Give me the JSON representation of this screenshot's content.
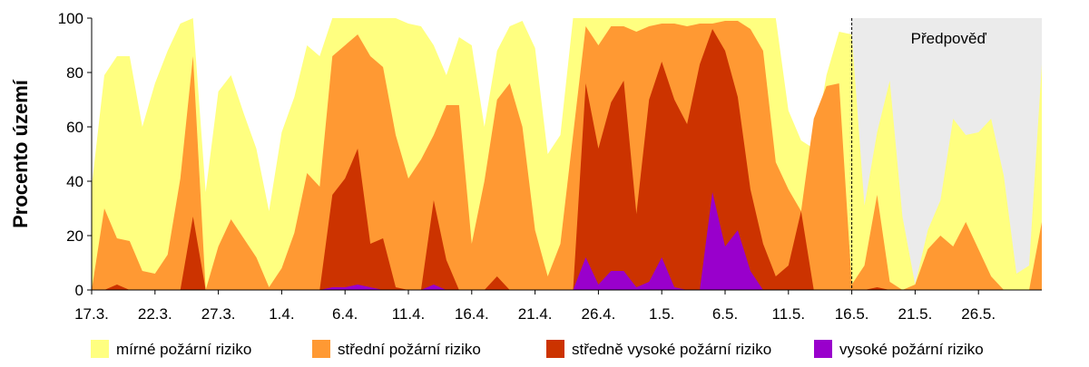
{
  "chart_data": {
    "type": "area",
    "stacked": false,
    "ylabel": "Procento území",
    "ylim": [
      0,
      100
    ],
    "yticks": [
      0,
      20,
      40,
      60,
      80,
      100
    ],
    "x_start": "17.3.",
    "x_end": "26.5.",
    "xtick_labels": [
      "17.3.",
      "22.3.",
      "27.3.",
      "1.4.",
      "6.4.",
      "11.4.",
      "16.4.",
      "21.4.",
      "26.4.",
      "1.5.",
      "6.5.",
      "11.5.",
      "16.5.",
      "21.5.",
      "26.5."
    ],
    "forecast": {
      "label": "Předpověď",
      "from": "16.5.",
      "to": "26.5.",
      "color": "#ebebeb"
    },
    "legend_position": "bottom",
    "series": [
      {
        "name": "mírné požární riziko",
        "color": "#ffff80",
        "values": [
          38,
          79,
          86,
          86,
          60,
          76,
          88,
          98,
          100,
          36,
          73,
          79,
          65,
          52,
          29,
          58,
          71,
          90,
          86,
          100,
          100,
          100,
          100,
          100,
          100,
          98,
          97,
          90,
          79,
          93,
          90,
          60,
          88,
          97,
          99,
          89,
          50,
          57,
          100,
          100,
          100,
          100,
          100,
          100,
          100,
          100,
          100,
          100,
          100,
          100,
          100,
          100,
          100,
          100,
          100,
          66,
          55,
          52,
          79,
          95,
          94,
          31,
          58,
          77,
          27,
          2,
          22,
          33,
          63,
          57,
          58,
          63,
          42,
          6,
          9,
          83
        ]
      },
      {
        "name": "střední požární riziko",
        "color": "#ff9933",
        "values": [
          0,
          30,
          19,
          18,
          7,
          6,
          13,
          41,
          86,
          0,
          16,
          26,
          19,
          12,
          1,
          8,
          21,
          43,
          38,
          86,
          90,
          94,
          86,
          82,
          57,
          41,
          48,
          57,
          68,
          68,
          17,
          40,
          70,
          76,
          60,
          22,
          5,
          17,
          57,
          97,
          90,
          97,
          97,
          95,
          97,
          98,
          98,
          97,
          98,
          98,
          99,
          99,
          96,
          88,
          47,
          37,
          29,
          63,
          75,
          76,
          2,
          9,
          35,
          3,
          0,
          2,
          15,
          20,
          16,
          25,
          15,
          5,
          0,
          0,
          0,
          25
        ]
      },
      {
        "name": "středně vysoké požární riziko",
        "color": "#cc3300",
        "values": [
          0,
          0,
          2,
          0,
          0,
          0,
          0,
          0,
          27,
          0,
          0,
          0,
          0,
          0,
          0,
          0,
          0,
          0,
          0,
          35,
          41,
          52,
          17,
          19,
          1,
          0,
          0,
          33,
          11,
          0,
          0,
          0,
          5,
          0,
          0,
          0,
          0,
          0,
          0,
          76,
          52,
          69,
          77,
          28,
          70,
          84,
          70,
          61,
          83,
          96,
          88,
          71,
          37,
          17,
          5,
          9,
          29,
          0,
          0,
          0,
          0,
          0,
          1,
          0,
          0,
          0,
          0,
          0,
          0,
          0,
          0,
          0,
          0,
          0,
          0,
          0
        ]
      },
      {
        "name": "vysoké požární riziko",
        "color": "#9900cc",
        "values": [
          0,
          0,
          0,
          0,
          0,
          0,
          0,
          0,
          0,
          0,
          0,
          0,
          0,
          0,
          0,
          0,
          0,
          0,
          0,
          1,
          1,
          2,
          1,
          0,
          0,
          0,
          0,
          2,
          0,
          0,
          0,
          0,
          0,
          0,
          0,
          0,
          0,
          0,
          0,
          12,
          2,
          7,
          7,
          1,
          3,
          12,
          1,
          0,
          0,
          36,
          16,
          22,
          7,
          0,
          0,
          0,
          0,
          0,
          0,
          0,
          0,
          0,
          0,
          0,
          0,
          0,
          0,
          0,
          0,
          0,
          0,
          0,
          0,
          0,
          0,
          0
        ]
      }
    ]
  }
}
